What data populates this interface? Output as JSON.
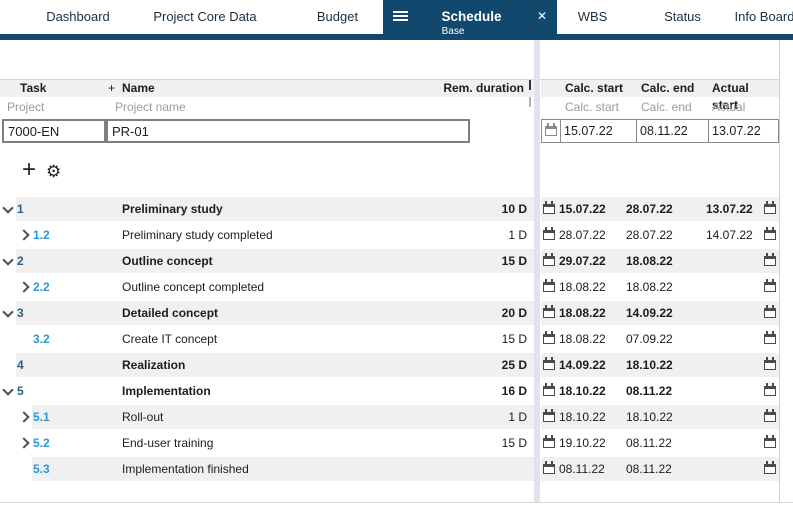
{
  "tabs": {
    "items": [
      {
        "label": "Dashboard"
      },
      {
        "label": "Project Core Data"
      },
      {
        "label": "Budget"
      },
      {
        "label": "Schedule",
        "sublabel": "Base",
        "active": true,
        "close_icon": "✕"
      },
      {
        "label": "WBS"
      },
      {
        "label": "Status"
      },
      {
        "label": "Info Board"
      }
    ]
  },
  "colors": {
    "accent_navy": "#10486e",
    "row_stripe": "#f0f0f0",
    "splitter_lavender": "#e6dfec",
    "parent_number_blue": "#2a6187",
    "child_number_blue": "#2b9ad2"
  },
  "left_header": {
    "task": "Task",
    "plus": "+",
    "name": "Name",
    "rem_duration": "Rem. duration"
  },
  "left_filter": {
    "task": "Project",
    "name": "Project name"
  },
  "right_header": {
    "calc_start": "Calc. start",
    "calc_end": "Calc. end",
    "actual_start": "Actual start"
  },
  "right_filter": {
    "calc_start": "Calc. start",
    "calc_end": "Calc. end",
    "actual_start": "Actual start"
  },
  "filter_inputs": {
    "task": "7000-EN",
    "name": "PR-01",
    "calc_start": "15.07.22",
    "calc_end": "08.11.22",
    "actual_start": "13.07.22"
  },
  "toolbar": {
    "add_label": "+",
    "settings_icon": "⚙"
  },
  "rows": [
    {
      "number": "1",
      "name": "Preliminary study",
      "duration": "10 D",
      "calc_start": "15.07.22",
      "calc_end": "28.07.22",
      "actual_start": "13.07.22",
      "level": 0,
      "expand": "down",
      "bold": true
    },
    {
      "number": "1.2",
      "name": "Preliminary study completed",
      "duration": "1 D",
      "calc_start": "28.07.22",
      "calc_end": "28.07.22",
      "actual_start": "14.07.22",
      "level": 1,
      "expand": "right",
      "bold": false
    },
    {
      "number": "2",
      "name": "Outline concept",
      "duration": "15 D",
      "calc_start": "29.07.22",
      "calc_end": "18.08.22",
      "actual_start": "",
      "level": 0,
      "expand": "down",
      "bold": true
    },
    {
      "number": "2.2",
      "name": "Outline concept completed",
      "duration": "",
      "calc_start": "18.08.22",
      "calc_end": "18.08.22",
      "actual_start": "",
      "level": 1,
      "expand": "right",
      "bold": false
    },
    {
      "number": "3",
      "name": "Detailed concept",
      "duration": "20 D",
      "calc_start": "18.08.22",
      "calc_end": "14.09.22",
      "actual_start": "",
      "level": 0,
      "expand": "down",
      "bold": true
    },
    {
      "number": "3.2",
      "name": "Create IT concept",
      "duration": "15 D",
      "calc_start": "18.08.22",
      "calc_end": "07.09.22",
      "actual_start": "",
      "level": 1,
      "expand": "none",
      "bold": false
    },
    {
      "number": "4",
      "name": "Realization",
      "duration": "25 D",
      "calc_start": "14.09.22",
      "calc_end": "18.10.22",
      "actual_start": "",
      "level": 0,
      "expand": "none",
      "bold": true
    },
    {
      "number": "5",
      "name": "Implementation",
      "duration": "16 D",
      "calc_start": "18.10.22",
      "calc_end": "08.11.22",
      "actual_start": "",
      "level": 0,
      "expand": "down",
      "bold": true
    },
    {
      "number": "5.1",
      "name": "Roll-out",
      "duration": "1 D",
      "calc_start": "18.10.22",
      "calc_end": "18.10.22",
      "actual_start": "",
      "level": 1,
      "expand": "right",
      "bold": false
    },
    {
      "number": "5.2",
      "name": "End-user training",
      "duration": "15 D",
      "calc_start": "19.10.22",
      "calc_end": "08.11.22",
      "actual_start": "",
      "level": 1,
      "expand": "right",
      "bold": false
    },
    {
      "number": "5.3",
      "name": "Implementation finished",
      "duration": "",
      "calc_start": "08.11.22",
      "calc_end": "08.11.22",
      "actual_start": "",
      "level": 1,
      "expand": "none",
      "bold": false
    }
  ]
}
